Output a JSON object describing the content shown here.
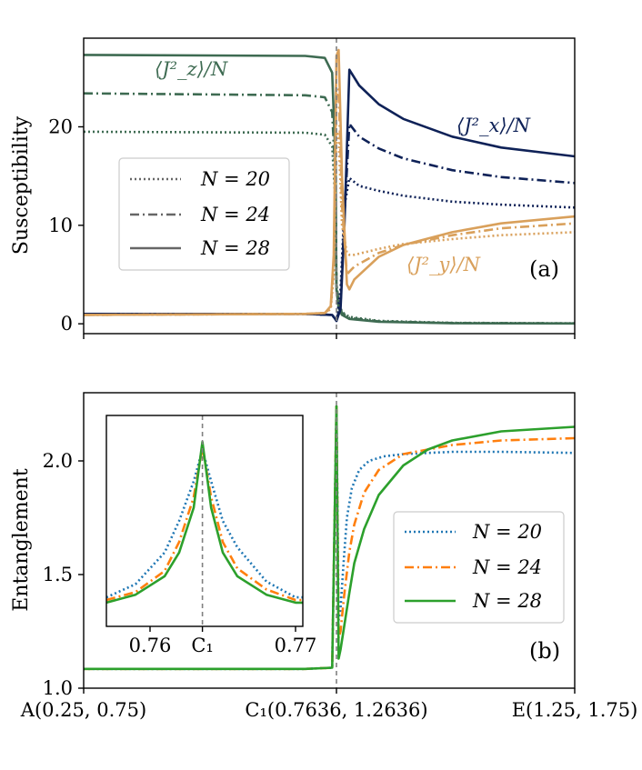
{
  "chart_data": [
    {
      "type": "line",
      "panel_label": "(a)",
      "ylabel": "Susceptibility",
      "ylim": [
        -1,
        29
      ],
      "yticks": [
        0,
        10,
        20
      ],
      "x_tick_labels": [
        "",
        "",
        ""
      ],
      "xlim": [
        0.25,
        1.25
      ],
      "critical_line_x": 0.7636,
      "legend": {
        "placement": "center-left",
        "entries": [
          "N = 20",
          "N = 24",
          "N = 28"
        ],
        "color": "#666666"
      },
      "series": [
        {
          "group": "Jz",
          "label": "⟨J²_z⟩/N",
          "color": "#3e6b52",
          "lines": [
            {
              "N": 20,
              "dash": "dotted",
              "x": [
                0.25,
                0.7,
                0.74,
                0.755,
                0.762,
                0.7636,
                0.768,
                0.775,
                0.79,
                0.85,
                1.0,
                1.25
              ],
              "y": [
                19.5,
                19.4,
                19.2,
                18.0,
                12.0,
                4.0,
                2.2,
                1.2,
                0.7,
                0.3,
                0.1,
                0.05
              ]
            },
            {
              "N": 24,
              "dash": "dashdot",
              "x": [
                0.25,
                0.7,
                0.74,
                0.755,
                0.762,
                0.7636,
                0.768,
                0.775,
                0.79,
                0.85,
                1.0,
                1.25
              ],
              "y": [
                23.4,
                23.2,
                23.0,
                21.5,
                14.0,
                4.0,
                2.0,
                1.1,
                0.6,
                0.25,
                0.08,
                0.04
              ]
            },
            {
              "N": 28,
              "dash": "solid",
              "x": [
                0.25,
                0.7,
                0.74,
                0.755,
                0.762,
                0.7636,
                0.768,
                0.775,
                0.79,
                0.85,
                1.0,
                1.25
              ],
              "y": [
                27.3,
                27.2,
                27.0,
                25.5,
                16.0,
                3.5,
                1.6,
                0.9,
                0.5,
                0.2,
                0.05,
                0.03
              ]
            }
          ]
        },
        {
          "group": "Jx",
          "label": "⟨J²_x⟩/N",
          "color": "#0e2157",
          "lines": [
            {
              "N": 20,
              "dash": "dotted",
              "x": [
                0.25,
                0.7,
                0.755,
                0.7636,
                0.772,
                0.78,
                0.79,
                0.81,
                0.85,
                0.9,
                1.0,
                1.1,
                1.25
              ],
              "y": [
                1.0,
                1.0,
                0.9,
                0.3,
                3.5,
                12.0,
                14.8,
                14.0,
                13.5,
                13.0,
                12.4,
                12.1,
                11.8
              ]
            },
            {
              "N": 24,
              "dash": "dashdot",
              "x": [
                0.25,
                0.7,
                0.755,
                0.7636,
                0.772,
                0.78,
                0.79,
                0.81,
                0.85,
                0.9,
                1.0,
                1.1,
                1.25
              ],
              "y": [
                1.0,
                1.0,
                0.9,
                0.3,
                2.0,
                11.0,
                20.3,
                19.0,
                17.8,
                16.8,
                15.6,
                14.9,
                14.3
              ]
            },
            {
              "N": 28,
              "dash": "solid",
              "x": [
                0.25,
                0.7,
                0.755,
                0.7636,
                0.772,
                0.78,
                0.79,
                0.81,
                0.85,
                0.9,
                1.0,
                1.1,
                1.25
              ],
              "y": [
                1.0,
                1.0,
                0.9,
                0.3,
                1.5,
                10.0,
                25.8,
                24.2,
                22.3,
                20.8,
                19.0,
                17.9,
                17.0
              ]
            }
          ]
        },
        {
          "group": "Jy",
          "label": "⟨J²_y⟩/N",
          "color": "#d9a05b",
          "lines": [
            {
              "N": 20,
              "dash": "dotted",
              "x": [
                0.25,
                0.7,
                0.74,
                0.752,
                0.758,
                0.7636,
                0.768,
                0.775,
                0.785,
                0.79,
                0.8,
                0.85,
                0.9,
                1.0,
                1.1,
                1.25
              ],
              "y": [
                0.9,
                1.0,
                1.1,
                1.5,
                5.0,
                19.5,
                19.0,
                10.0,
                7.2,
                7.0,
                7.0,
                7.6,
                8.1,
                8.6,
                9.0,
                9.3
              ]
            },
            {
              "N": 24,
              "dash": "dashdot",
              "x": [
                0.25,
                0.7,
                0.74,
                0.752,
                0.758,
                0.7636,
                0.768,
                0.775,
                0.785,
                0.79,
                0.8,
                0.85,
                0.9,
                1.0,
                1.1,
                1.25
              ],
              "y": [
                0.9,
                1.0,
                1.1,
                1.6,
                6.0,
                23.2,
                23.8,
                12.0,
                5.0,
                5.3,
                5.8,
                7.2,
                8.0,
                9.0,
                9.7,
                10.2
              ]
            },
            {
              "N": 28,
              "dash": "solid",
              "x": [
                0.25,
                0.7,
                0.74,
                0.752,
                0.758,
                0.7636,
                0.768,
                0.775,
                0.785,
                0.79,
                0.8,
                0.85,
                0.9,
                1.0,
                1.1,
                1.25
              ],
              "y": [
                0.9,
                1.0,
                1.1,
                1.8,
                7.0,
                27.2,
                27.8,
                15.0,
                4.0,
                3.5,
                4.5,
                6.8,
                8.0,
                9.3,
                10.2,
                10.9
              ]
            }
          ]
        }
      ]
    },
    {
      "type": "line",
      "panel_label": "(b)",
      "ylabel": "Entanglement",
      "ylim": [
        1.0,
        2.3
      ],
      "yticks": [
        1.0,
        1.5,
        2.0
      ],
      "ytick_labels": [
        "1.0",
        "1.5",
        "2.0"
      ],
      "x_tick_labels": [
        "A(0.25, 0.75)",
        "C₁(0.7636, 1.2636)",
        "E(1.25, 1.75)"
      ],
      "xlim": [
        0.25,
        1.25
      ],
      "critical_line_x": 0.7636,
      "legend": {
        "placement": "center-right",
        "entries": [
          "N = 20",
          "N = 24",
          "N = 28"
        ]
      },
      "series": [
        {
          "N": 20,
          "dash": "dotted",
          "color": "#1f77b4",
          "x": [
            0.25,
            0.7,
            0.755,
            0.7636,
            0.768,
            0.772,
            0.778,
            0.785,
            0.795,
            0.81,
            0.83,
            0.86,
            0.9,
            1.0,
            1.1,
            1.25
          ],
          "y": [
            1.085,
            1.085,
            1.09,
            2.24,
            1.3,
            1.35,
            1.55,
            1.75,
            1.88,
            1.96,
            2.0,
            2.02,
            2.03,
            2.04,
            2.04,
            2.035
          ]
        },
        {
          "N": 24,
          "dash": "dashdot",
          "color": "#ff7f0e",
          "x": [
            0.25,
            0.7,
            0.755,
            0.7636,
            0.768,
            0.772,
            0.78,
            0.79,
            0.8,
            0.82,
            0.85,
            0.9,
            1.0,
            1.1,
            1.25
          ],
          "y": [
            1.085,
            1.085,
            1.09,
            2.24,
            1.22,
            1.25,
            1.42,
            1.6,
            1.72,
            1.86,
            1.96,
            2.03,
            2.07,
            2.09,
            2.1
          ]
        },
        {
          "N": 28,
          "dash": "solid",
          "color": "#2ca02c",
          "x": [
            0.25,
            0.7,
            0.755,
            0.7636,
            0.768,
            0.772,
            0.78,
            0.79,
            0.8,
            0.82,
            0.85,
            0.9,
            0.95,
            1.0,
            1.1,
            1.25
          ],
          "y": [
            1.085,
            1.085,
            1.09,
            2.24,
            1.13,
            1.17,
            1.28,
            1.42,
            1.55,
            1.7,
            1.85,
            1.98,
            2.05,
            2.09,
            2.13,
            2.15
          ]
        }
      ],
      "inset": {
        "xlim": [
          0.757,
          0.7705
        ],
        "ylim": [
          1.5,
          2.3
        ],
        "x_tick_values": [
          0.76,
          0.7636,
          0.77
        ],
        "x_tick_labels": [
          "0.76",
          "C₁",
          "0.77"
        ],
        "critical_line_x": 0.7636,
        "series": [
          {
            "N": 20,
            "dash": "dotted",
            "color": "#1f77b4",
            "x": [
              0.757,
              0.759,
              0.761,
              0.762,
              0.763,
              0.7636,
              0.7642,
              0.765,
              0.766,
              0.768,
              0.77,
              0.7705
            ],
            "y": [
              1.61,
              1.66,
              1.78,
              1.9,
              2.05,
              2.17,
              2.05,
              1.9,
              1.8,
              1.67,
              1.61,
              1.61
            ]
          },
          {
            "N": 24,
            "dash": "dashdot",
            "color": "#ff7f0e",
            "x": [
              0.757,
              0.759,
              0.761,
              0.762,
              0.763,
              0.7636,
              0.7642,
              0.765,
              0.766,
              0.768,
              0.77,
              0.7705
            ],
            "y": [
              1.6,
              1.63,
              1.71,
              1.82,
              1.99,
              2.18,
              1.99,
              1.82,
              1.72,
              1.64,
              1.6,
              1.6
            ]
          },
          {
            "N": 28,
            "dash": "solid",
            "color": "#2ca02c",
            "x": [
              0.757,
              0.759,
              0.761,
              0.762,
              0.763,
              0.7636,
              0.7642,
              0.765,
              0.766,
              0.768,
              0.77,
              0.7705
            ],
            "y": [
              1.59,
              1.62,
              1.69,
              1.78,
              1.95,
              2.2,
              1.95,
              1.78,
              1.69,
              1.62,
              1.59,
              1.59
            ]
          }
        ]
      }
    }
  ]
}
